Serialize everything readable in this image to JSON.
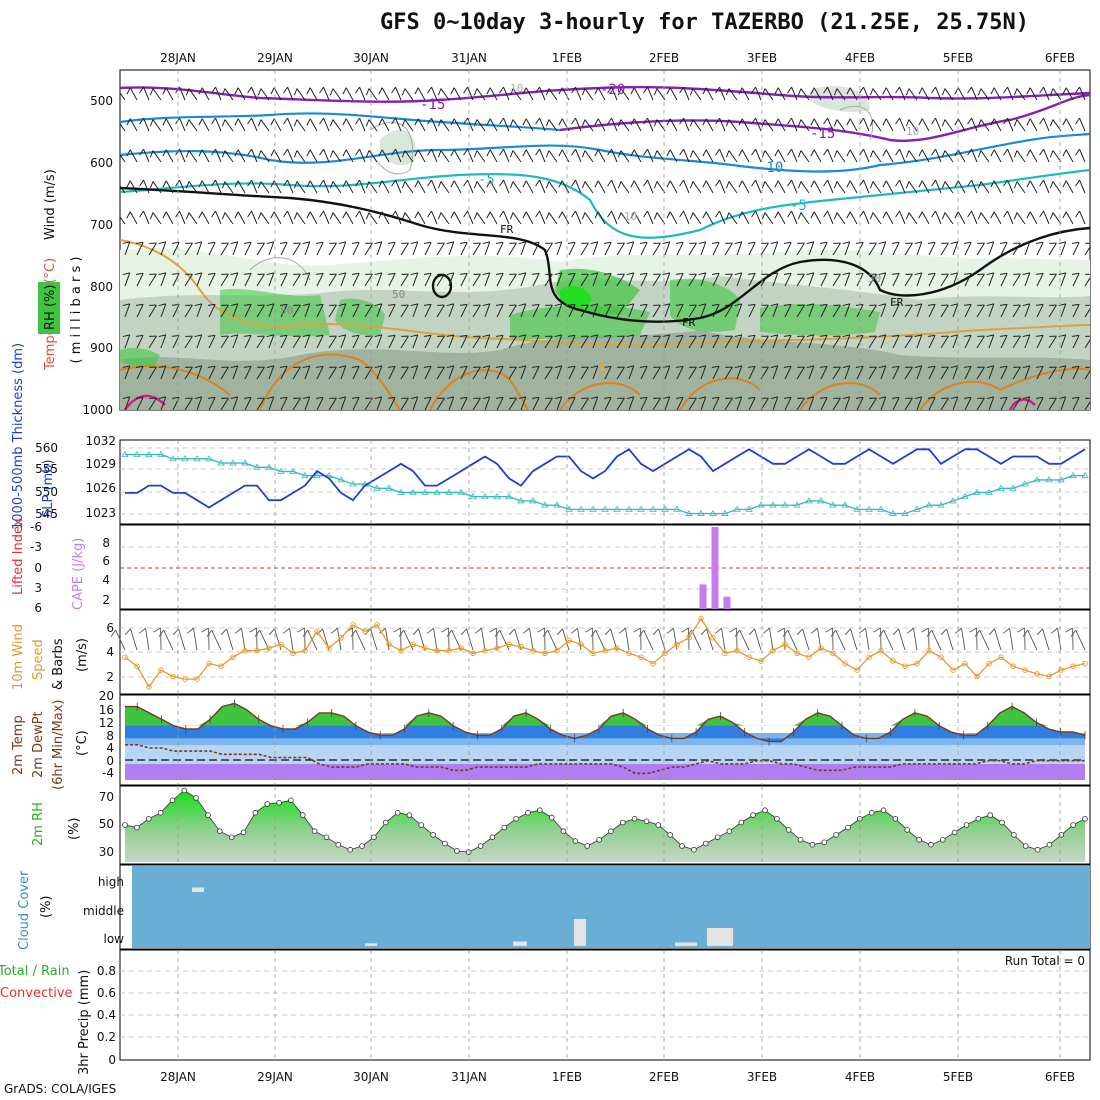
{
  "title": "GFS 0~10day 3-hourly for TAZERBO (21.25E, 25.75N)",
  "footer": "GrADS: COLA/IGES",
  "run_total": "Run Total = 0",
  "dates": [
    "28JAN",
    "29JAN",
    "30JAN",
    "31JAN",
    "1FEB",
    "2FEB",
    "3FEB",
    "4FEB",
    "5FEB",
    "6FEB"
  ],
  "colors": {
    "rh_green": "#3ec43e",
    "rh_dark": "#9fb39f",
    "rh_light": "#e6f3e6",
    "temp_purple": "#8a1fb3",
    "temp_blue": "#1b8ad6",
    "temp_cyan": "#20b8c8",
    "temp_orange": "#e0821c",
    "temp_magenta": "#e0108c",
    "slp_blue": "#1f3fcf",
    "thick_cyan": "#3cb8c0",
    "cape_purple": "#c77bf0",
    "wind_orange": "#e69a2e",
    "cloud_blue": "#6aaed6",
    "li_red": "#e03030"
  },
  "panels": {
    "upper": {
      "ylabel_rh": "RH (%)",
      "ylabel_temp": "Temperature (°C)",
      "ylabel_wind": "Wind (m/s)",
      "ylabel_mb": "( m i l l i b a r s )",
      "yticks": [
        "500",
        "600",
        "700",
        "800",
        "900",
        "1000"
      ],
      "contour_labels": [
        "-20",
        "-15",
        "-15",
        "-10",
        "-5",
        "-5",
        "FR",
        "FR",
        "FR",
        "5",
        "10",
        "10",
        "10",
        "30",
        "50",
        "50"
      ]
    },
    "slp": {
      "ylabel_left": "1000-500mb Thickness (dm)",
      "ylabel_right": "SLP (mb)",
      "left_ticks": [
        "560",
        "555",
        "550",
        "545"
      ],
      "right_ticks": [
        "1032",
        "1029",
        "1026",
        "1023"
      ]
    },
    "cape": {
      "ylabel_left": "Lifted Index",
      "ylabel_right": "CAPE (J/kg)",
      "left_ticks": [
        "-6",
        "-3",
        "0",
        "3",
        "6"
      ],
      "right_ticks": [
        "8",
        "6",
        "4",
        "2"
      ]
    },
    "wind10": {
      "ylabel_a": "10m Wind",
      "ylabel_b": "Speed",
      "ylabel_c": "& Barbs",
      "ylabel_d": "(m/s)",
      "yticks": [
        "6",
        "4",
        "2"
      ]
    },
    "temp2m": {
      "ylabel_a": "2m Temp",
      "ylabel_b": "2m DewPt",
      "ylabel_c": "(6hr Min/Max)",
      "ylabel_d": "(°C)",
      "yticks": [
        "20",
        "16",
        "12",
        "8",
        "4",
        "0",
        "-4"
      ]
    },
    "rh2m": {
      "ylabel_a": "2m RH",
      "ylabel_b": "(%)",
      "yticks": [
        "70",
        "50",
        "30"
      ]
    },
    "cloud": {
      "ylabel_a": "Cloud Cover",
      "ylabel_b": "(%)",
      "yticks": [
        "high",
        "middle",
        "low"
      ]
    },
    "precip": {
      "ylabel_a": "Total / Rain",
      "ylabel_b": "Convective",
      "ylabel_c": "3hr Precip (mm)",
      "yticks": [
        "0.8",
        "0.6",
        "0.4",
        "0.2",
        "0"
      ]
    }
  },
  "chart_data": [
    {
      "type": "line",
      "title": "SLP (mb)",
      "ylim": [
        1021,
        1032
      ],
      "x_step_hours": 3,
      "values": [
        1025,
        1025,
        1026,
        1026,
        1025,
        1025,
        1024,
        1023,
        1024,
        1025,
        1026,
        1026,
        1024,
        1024,
        1025,
        1026,
        1028,
        1027,
        1025,
        1024,
        1026,
        1027,
        1028,
        1029,
        1028,
        1026,
        1026,
        1027,
        1028,
        1029,
        1030,
        1029,
        1027,
        1026,
        1028,
        1029,
        1030,
        1030,
        1028,
        1027,
        1028,
        1030,
        1031,
        1029,
        1028,
        1029,
        1030,
        1031,
        1030,
        1028,
        1029,
        1030,
        1031,
        1030,
        1029,
        1029,
        1030,
        1031,
        1030,
        1029,
        1029,
        1030,
        1031,
        1030,
        1029,
        1030,
        1031,
        1031,
        1029,
        1030,
        1031,
        1031,
        1030,
        1029,
        1030,
        1030,
        1030,
        1029,
        1029,
        1030,
        1031
      ]
    },
    {
      "type": "line",
      "title": "1000-500mb Thickness (dm)",
      "ylim": [
        542,
        561
      ],
      "x_step_hours": 3,
      "values": [
        558,
        558,
        558,
        558,
        557,
        557,
        557,
        557,
        556,
        556,
        556,
        555,
        555,
        554,
        554,
        553,
        553,
        553,
        552,
        551,
        551,
        550,
        550,
        549,
        549,
        549,
        549,
        549,
        549,
        548,
        548,
        548,
        548,
        547,
        547,
        546,
        546,
        545,
        545,
        545,
        545,
        545,
        545,
        545,
        545,
        545,
        545,
        544,
        544,
        544,
        544,
        545,
        545,
        546,
        546,
        546,
        546,
        547,
        547,
        546,
        546,
        545,
        545,
        545,
        544,
        544,
        545,
        546,
        546,
        547,
        548,
        549,
        549,
        550,
        550,
        551,
        552,
        552,
        552,
        553,
        553
      ]
    },
    {
      "type": "bar",
      "title": "CAPE (J/kg)",
      "ylim": [
        0,
        10
      ],
      "categories": [
        "2FEB 09Z",
        "2FEB 12Z",
        "2FEB 15Z"
      ],
      "values": [
        3,
        10,
        1.5
      ]
    },
    {
      "type": "line",
      "title": "10m Wind Speed (m/s)",
      "ylim": [
        0.8,
        7.0
      ],
      "x_step_hours": 3,
      "values": [
        3.5,
        2.8,
        1.2,
        2.5,
        2.0,
        1.8,
        1.8,
        3.0,
        2.8,
        3.5,
        4.0,
        4.0,
        4.2,
        4.5,
        3.8,
        4.0,
        5.5,
        4.2,
        5.0,
        6.0,
        5.5,
        6.0,
        4.5,
        4.0,
        4.5,
        4.2,
        4.0,
        4.0,
        4.2,
        3.8,
        4.0,
        4.2,
        4.5,
        4.3,
        4.0,
        3.8,
        4.0,
        4.8,
        4.5,
        3.8,
        4.0,
        4.2,
        3.8,
        3.5,
        3.0,
        3.8,
        4.5,
        5.0,
        6.5,
        5.0,
        3.8,
        4.0,
        3.5,
        3.2,
        4.0,
        4.5,
        3.8,
        3.5,
        4.2,
        3.8,
        3.0,
        2.5,
        3.5,
        4.0,
        3.2,
        2.8,
        3.0,
        4.0,
        3.5,
        2.5,
        3.0,
        2.0,
        3.0,
        3.5,
        2.8,
        2.5,
        2.2,
        2.0,
        2.5,
        2.8,
        3.0
      ]
    },
    {
      "type": "line",
      "title": "2m Temp / 2m DewPt (°C)",
      "ylim": [
        -6,
        21
      ],
      "x_step_hours": 3,
      "series": [
        {
          "name": "2m Temp",
          "values": [
            18,
            18,
            16,
            14,
            12,
            11,
            11,
            14,
            18,
            19,
            17,
            14,
            12,
            11,
            11,
            13,
            16,
            16,
            15,
            12,
            10,
            9,
            9,
            11,
            15,
            16,
            15,
            12,
            10,
            9,
            9,
            11,
            15,
            16,
            14,
            11,
            9,
            8,
            9,
            11,
            15,
            16,
            14,
            11,
            9,
            8,
            8,
            10,
            14,
            15,
            13,
            10,
            8,
            7,
            7,
            10,
            14,
            16,
            15,
            12,
            9,
            8,
            8,
            10,
            14,
            16,
            15,
            12,
            10,
            9,
            9,
            12,
            16,
            18,
            16,
            13,
            11,
            10,
            10,
            9
          ]
        },
        {
          "name": "2m DewPt",
          "values": [
            6,
            6,
            5,
            5,
            4,
            4,
            4,
            4,
            3,
            3,
            3,
            3,
            2,
            2,
            2,
            2,
            0,
            -1,
            -1,
            -1,
            0,
            0,
            0,
            0,
            -1,
            -1,
            -1,
            -2,
            -2,
            -1,
            -1,
            -1,
            -1,
            -1,
            0,
            0,
            0,
            0,
            0,
            0,
            0,
            -1,
            -3,
            -3,
            -2,
            -1,
            -1,
            0,
            1,
            0,
            0,
            0,
            1,
            1,
            0,
            0,
            -1,
            -2,
            -2,
            -2,
            -1,
            -1,
            -1,
            -1,
            0,
            0,
            0,
            0,
            0,
            0,
            0,
            1,
            1,
            0,
            0,
            1,
            1,
            1,
            1,
            1
          ]
        }
      ]
    },
    {
      "type": "area",
      "title": "2m RH (%)",
      "ylim": [
        20,
        80
      ],
      "x_step_hours": 3,
      "values": [
        50,
        48,
        55,
        60,
        70,
        78,
        72,
        58,
        45,
        40,
        44,
        60,
        67,
        68,
        70,
        58,
        45,
        40,
        34,
        30,
        33,
        40,
        52,
        60,
        58,
        50,
        42,
        35,
        29,
        28,
        33,
        40,
        48,
        55,
        60,
        62,
        56,
        45,
        37,
        33,
        38,
        45,
        52,
        55,
        53,
        50,
        42,
        33,
        30,
        35,
        40,
        45,
        52,
        58,
        62,
        55,
        46,
        38,
        34,
        36,
        42,
        48,
        55,
        60,
        62,
        55,
        46,
        38,
        34,
        38,
        44,
        50,
        55,
        58,
        52,
        42,
        33,
        30,
        34,
        42,
        50,
        55
      ]
    },
    {
      "type": "bar",
      "title": "Cloud Cover (%)",
      "ylim": [
        0,
        100
      ],
      "categories": [
        "30JAN low",
        "1FEB low",
        "1FEB 06Z low",
        "2FEB 06Z low",
        "2FEB 15Z low",
        "28JAN high"
      ],
      "values": [
        3,
        5,
        30,
        4,
        20,
        5
      ]
    },
    {
      "type": "bar",
      "title": "3hr Precip (mm)",
      "ylim": [
        0,
        0.9
      ],
      "categories": [],
      "values": []
    }
  ]
}
